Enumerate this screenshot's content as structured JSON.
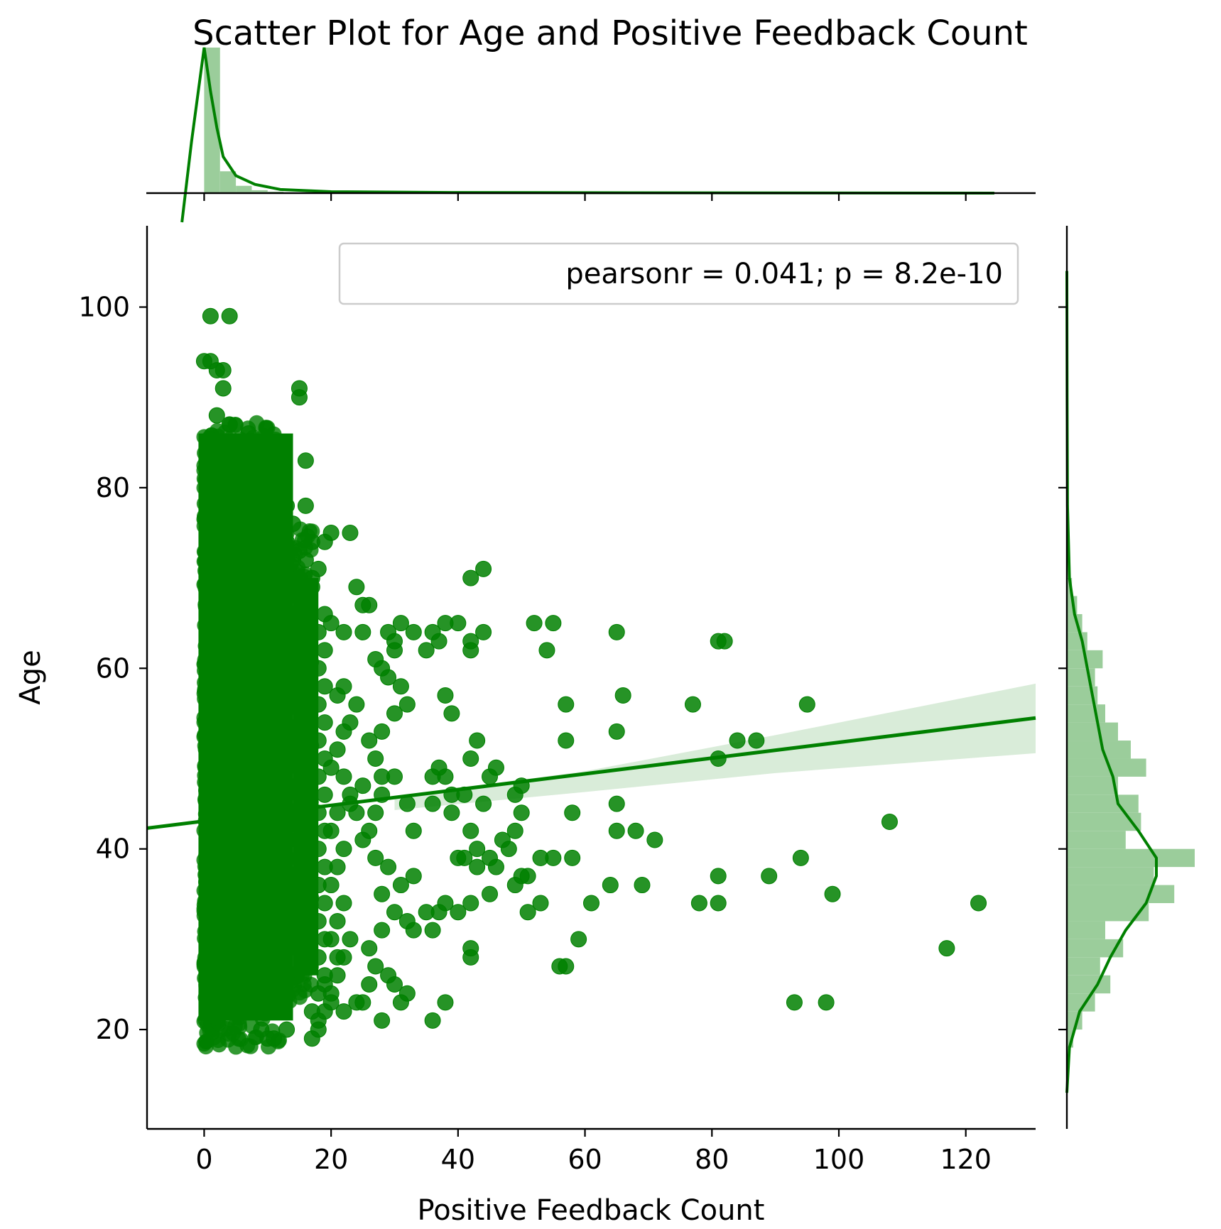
{
  "colors": {
    "series": "#008000",
    "band": "#008000",
    "hist": "#9bcd9b"
  },
  "chart_data": {
    "type": "scatter",
    "title": "Scatter Plot for Age and Positive Feedback Count",
    "xlabel": "Positive Feedback Count",
    "ylabel": "Age",
    "xlim": [
      -9,
      131
    ],
    "ylim": [
      9,
      109
    ],
    "x_ticks": [
      0,
      20,
      40,
      60,
      80,
      100,
      120
    ],
    "y_ticks": [
      20,
      40,
      60,
      80,
      100
    ],
    "legend": {
      "text": "pearsonr = 0.041; p = 8.2e-10",
      "placement": "top-right"
    },
    "regression": {
      "line": [
        [
          -9,
          42.3
        ],
        [
          131,
          54.5
        ]
      ],
      "ci_upper": [
        [
          30,
          45.8
        ],
        [
          60,
          48.6
        ],
        [
          90,
          52.6
        ],
        [
          131,
          58.3
        ]
      ],
      "ci_lower": [
        [
          30,
          44.3
        ],
        [
          60,
          46.3
        ],
        [
          90,
          48.4
        ],
        [
          131,
          50.6
        ]
      ]
    },
    "points": [
      [
        1,
        99
      ],
      [
        4,
        99
      ],
      [
        15,
        91
      ],
      [
        15,
        90
      ],
      [
        3,
        93
      ],
      [
        3,
        91
      ],
      [
        7,
        86
      ],
      [
        16,
        83
      ],
      [
        16,
        78
      ],
      [
        13,
        78
      ],
      [
        12,
        83
      ],
      [
        9,
        83
      ],
      [
        5,
        80
      ],
      [
        3,
        80
      ],
      [
        8,
        79
      ],
      [
        23,
        75
      ],
      [
        20,
        75
      ],
      [
        19,
        74
      ],
      [
        17,
        74
      ],
      [
        15,
        73
      ],
      [
        14,
        72
      ],
      [
        18,
        71
      ],
      [
        15,
        70
      ],
      [
        12,
        68
      ],
      [
        17,
        69
      ],
      [
        24,
        69
      ],
      [
        26,
        67
      ],
      [
        25,
        67
      ],
      [
        42,
        70
      ],
      [
        44,
        71
      ],
      [
        20,
        65
      ],
      [
        22,
        64
      ],
      [
        25,
        64
      ],
      [
        29,
        64
      ],
      [
        30,
        63
      ],
      [
        31,
        65
      ],
      [
        33,
        64
      ],
      [
        35,
        62
      ],
      [
        36,
        64
      ],
      [
        37,
        63
      ],
      [
        38,
        65
      ],
      [
        40,
        65
      ],
      [
        42,
        63
      ],
      [
        42,
        62
      ],
      [
        44,
        64
      ],
      [
        52,
        65
      ],
      [
        55,
        65
      ],
      [
        54,
        62
      ],
      [
        65,
        64
      ],
      [
        81,
        63
      ],
      [
        82,
        63
      ],
      [
        66,
        57
      ],
      [
        57,
        56
      ],
      [
        77,
        56
      ],
      [
        95,
        56
      ],
      [
        65,
        53
      ],
      [
        57,
        52
      ],
      [
        84,
        52
      ],
      [
        87,
        52
      ],
      [
        81,
        50
      ],
      [
        43,
        52
      ],
      [
        42,
        50
      ],
      [
        38,
        57
      ],
      [
        39,
        55
      ],
      [
        37,
        49
      ],
      [
        30,
        48
      ],
      [
        36,
        48
      ],
      [
        38,
        48
      ],
      [
        46,
        49
      ],
      [
        45,
        48
      ],
      [
        50,
        47
      ],
      [
        49,
        46
      ],
      [
        41,
        46
      ],
      [
        39,
        46
      ],
      [
        44,
        45
      ],
      [
        36,
        45
      ],
      [
        32,
        45
      ],
      [
        28,
        46
      ],
      [
        27,
        44
      ],
      [
        33,
        42
      ],
      [
        39,
        44
      ],
      [
        50,
        44
      ],
      [
        58,
        44
      ],
      [
        65,
        45
      ],
      [
        65,
        42
      ],
      [
        68,
        42
      ],
      [
        71,
        41
      ],
      [
        108,
        43
      ],
      [
        42,
        42
      ],
      [
        43,
        40
      ],
      [
        47,
        41
      ],
      [
        49,
        42
      ],
      [
        46,
        38
      ],
      [
        45,
        39
      ],
      [
        43,
        38
      ],
      [
        41,
        39
      ],
      [
        40,
        39
      ],
      [
        48,
        40
      ],
      [
        53,
        39
      ],
      [
        55,
        39
      ],
      [
        58,
        39
      ],
      [
        50,
        37
      ],
      [
        49,
        36
      ],
      [
        51,
        37
      ],
      [
        64,
        36
      ],
      [
        69,
        36
      ],
      [
        81,
        37
      ],
      [
        89,
        37
      ],
      [
        94,
        39
      ],
      [
        99,
        35
      ],
      [
        78,
        34
      ],
      [
        81,
        34
      ],
      [
        122,
        34
      ],
      [
        61,
        34
      ],
      [
        53,
        34
      ],
      [
        51,
        33
      ],
      [
        45,
        35
      ],
      [
        42,
        34
      ],
      [
        40,
        33
      ],
      [
        37,
        33
      ],
      [
        38,
        34
      ],
      [
        36,
        31
      ],
      [
        33,
        31
      ],
      [
        32,
        32
      ],
      [
        35,
        33
      ],
      [
        59,
        30
      ],
      [
        42,
        29
      ],
      [
        42,
        28
      ],
      [
        56,
        27
      ],
      [
        57,
        27
      ],
      [
        117,
        29
      ],
      [
        93,
        23
      ],
      [
        98,
        23
      ],
      [
        38,
        23
      ],
      [
        36,
        21
      ],
      [
        31,
        23
      ],
      [
        32,
        24
      ],
      [
        28,
        21
      ],
      [
        30,
        25
      ],
      [
        29,
        26
      ],
      [
        27,
        27
      ],
      [
        26,
        25
      ],
      [
        22,
        22
      ],
      [
        20,
        23
      ],
      [
        17,
        19
      ],
      [
        13,
        20
      ],
      [
        11,
        19
      ],
      [
        10,
        19
      ],
      [
        9,
        20
      ],
      [
        25,
        23
      ],
      [
        24,
        23
      ],
      [
        18,
        21
      ],
      [
        19,
        25
      ],
      [
        21,
        28
      ],
      [
        23,
        30
      ],
      [
        26,
        29
      ],
      [
        28,
        31
      ],
      [
        30,
        33
      ],
      [
        28,
        35
      ],
      [
        31,
        36
      ],
      [
        33,
        37
      ],
      [
        29,
        38
      ],
      [
        27,
        39
      ],
      [
        25,
        41
      ],
      [
        26,
        42
      ],
      [
        24,
        44
      ],
      [
        23,
        45
      ],
      [
        25,
        47
      ],
      [
        28,
        48
      ],
      [
        27,
        50
      ],
      [
        26,
        52
      ],
      [
        28,
        53
      ],
      [
        30,
        55
      ],
      [
        32,
        56
      ],
      [
        31,
        58
      ],
      [
        29,
        59
      ],
      [
        28,
        60
      ],
      [
        30,
        62
      ],
      [
        27,
        61
      ],
      [
        22,
        58
      ],
      [
        21,
        57
      ],
      [
        24,
        56
      ],
      [
        23,
        54
      ],
      [
        22,
        53
      ],
      [
        21,
        51
      ],
      [
        20,
        49
      ],
      [
        22,
        48
      ],
      [
        23,
        46
      ],
      [
        21,
        44
      ],
      [
        20,
        42
      ],
      [
        22,
        40
      ],
      [
        21,
        38
      ],
      [
        20,
        36
      ],
      [
        22,
        34
      ],
      [
        21,
        32
      ],
      [
        20,
        30
      ],
      [
        22,
        28
      ],
      [
        21,
        26
      ],
      [
        20,
        24
      ],
      [
        19,
        22
      ],
      [
        18,
        20
      ],
      [
        17,
        22
      ],
      [
        18,
        24
      ],
      [
        19,
        26
      ],
      [
        18,
        28
      ],
      [
        19,
        30
      ],
      [
        18,
        32
      ],
      [
        19,
        34
      ],
      [
        18,
        36
      ],
      [
        19,
        38
      ],
      [
        18,
        40
      ],
      [
        19,
        42
      ],
      [
        18,
        44
      ],
      [
        19,
        46
      ],
      [
        18,
        48
      ],
      [
        19,
        50
      ],
      [
        18,
        52
      ],
      [
        19,
        54
      ],
      [
        18,
        56
      ],
      [
        19,
        58
      ],
      [
        18,
        60
      ],
      [
        19,
        62
      ],
      [
        18,
        64
      ],
      [
        19,
        66
      ],
      [
        10,
        71
      ],
      [
        12,
        73
      ],
      [
        13,
        74
      ],
      [
        11,
        75
      ],
      [
        9,
        74
      ],
      [
        14,
        76
      ],
      [
        16,
        72
      ],
      [
        17,
        70
      ],
      [
        13,
        69
      ],
      [
        8,
        77
      ],
      [
        6,
        78
      ],
      [
        7,
        76
      ],
      [
        5,
        85
      ],
      [
        4,
        87
      ],
      [
        2,
        88
      ],
      [
        1,
        94
      ],
      [
        0,
        94
      ],
      [
        2,
        93
      ]
    ],
    "dense_band": [
      0,
      17
    ],
    "dense_y_range": [
      18,
      88
    ],
    "x_marginal": {
      "bins": [
        0,
        2.5,
        5,
        7.5,
        10
      ],
      "counts_rel": [
        1.0,
        0.15,
        0.05,
        0.02,
        0.01
      ]
    },
    "y_marginal": {
      "bin_edges": [
        18,
        20,
        22,
        24,
        26,
        28,
        30,
        32,
        34,
        36,
        38,
        40,
        42,
        44,
        46,
        48,
        50,
        52,
        54,
        56,
        58,
        60,
        62,
        64,
        66,
        68,
        70
      ],
      "density_rel": [
        0.05,
        0.12,
        0.22,
        0.34,
        0.26,
        0.44,
        0.3,
        0.64,
        0.84,
        0.68,
        1.0,
        0.46,
        0.58,
        0.56,
        0.4,
        0.62,
        0.5,
        0.4,
        0.3,
        0.24,
        0.22,
        0.28,
        0.16,
        0.12,
        0.08,
        0.04
      ]
    }
  }
}
